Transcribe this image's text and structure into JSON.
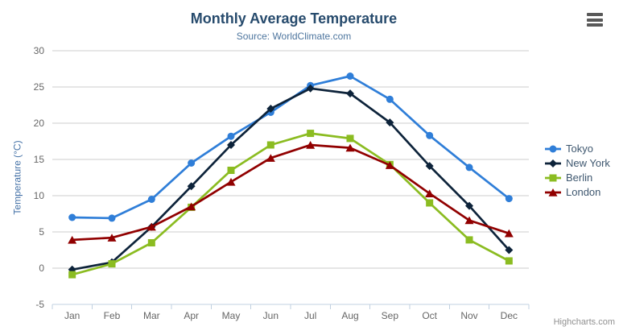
{
  "credit": "Highcharts.com",
  "icons": {
    "menu": "hamburger-icon"
  },
  "chart_data": {
    "type": "line",
    "title": "Monthly Average Temperature",
    "subtitle": "Source: WorldClimate.com",
    "xlabel": "",
    "ylabel": "Temperature (°C)",
    "categories": [
      "Jan",
      "Feb",
      "Mar",
      "Apr",
      "May",
      "Jun",
      "Jul",
      "Aug",
      "Sep",
      "Oct",
      "Nov",
      "Dec"
    ],
    "series": [
      {
        "name": "Tokyo",
        "color": "#2f7ed8",
        "marker": "circle",
        "values": [
          7.0,
          6.9,
          9.5,
          14.5,
          18.2,
          21.5,
          25.2,
          26.5,
          23.3,
          18.3,
          13.9,
          9.6
        ]
      },
      {
        "name": "New York",
        "color": "#0d233a",
        "marker": "diamond",
        "values": [
          -0.2,
          0.8,
          5.7,
          11.3,
          17.0,
          22.0,
          24.8,
          24.1,
          20.1,
          14.1,
          8.6,
          2.5
        ]
      },
      {
        "name": "Berlin",
        "color": "#8bbc21",
        "marker": "square",
        "values": [
          -0.9,
          0.6,
          3.5,
          8.4,
          13.5,
          17.0,
          18.6,
          17.9,
          14.3,
          9.0,
          3.9,
          1.0
        ]
      },
      {
        "name": "London",
        "color": "#910000",
        "marker": "triangle",
        "values": [
          3.9,
          4.2,
          5.7,
          8.5,
          11.9,
          15.2,
          17.0,
          16.6,
          14.2,
          10.3,
          6.6,
          4.8
        ]
      }
    ],
    "ylim": [
      -5,
      30
    ],
    "ytick_step": 5,
    "grid": true,
    "legend_position": "right",
    "grid_color": "#cccccc",
    "axis_line_color": "#c0d0e0",
    "tick_label_color": "#666666"
  }
}
